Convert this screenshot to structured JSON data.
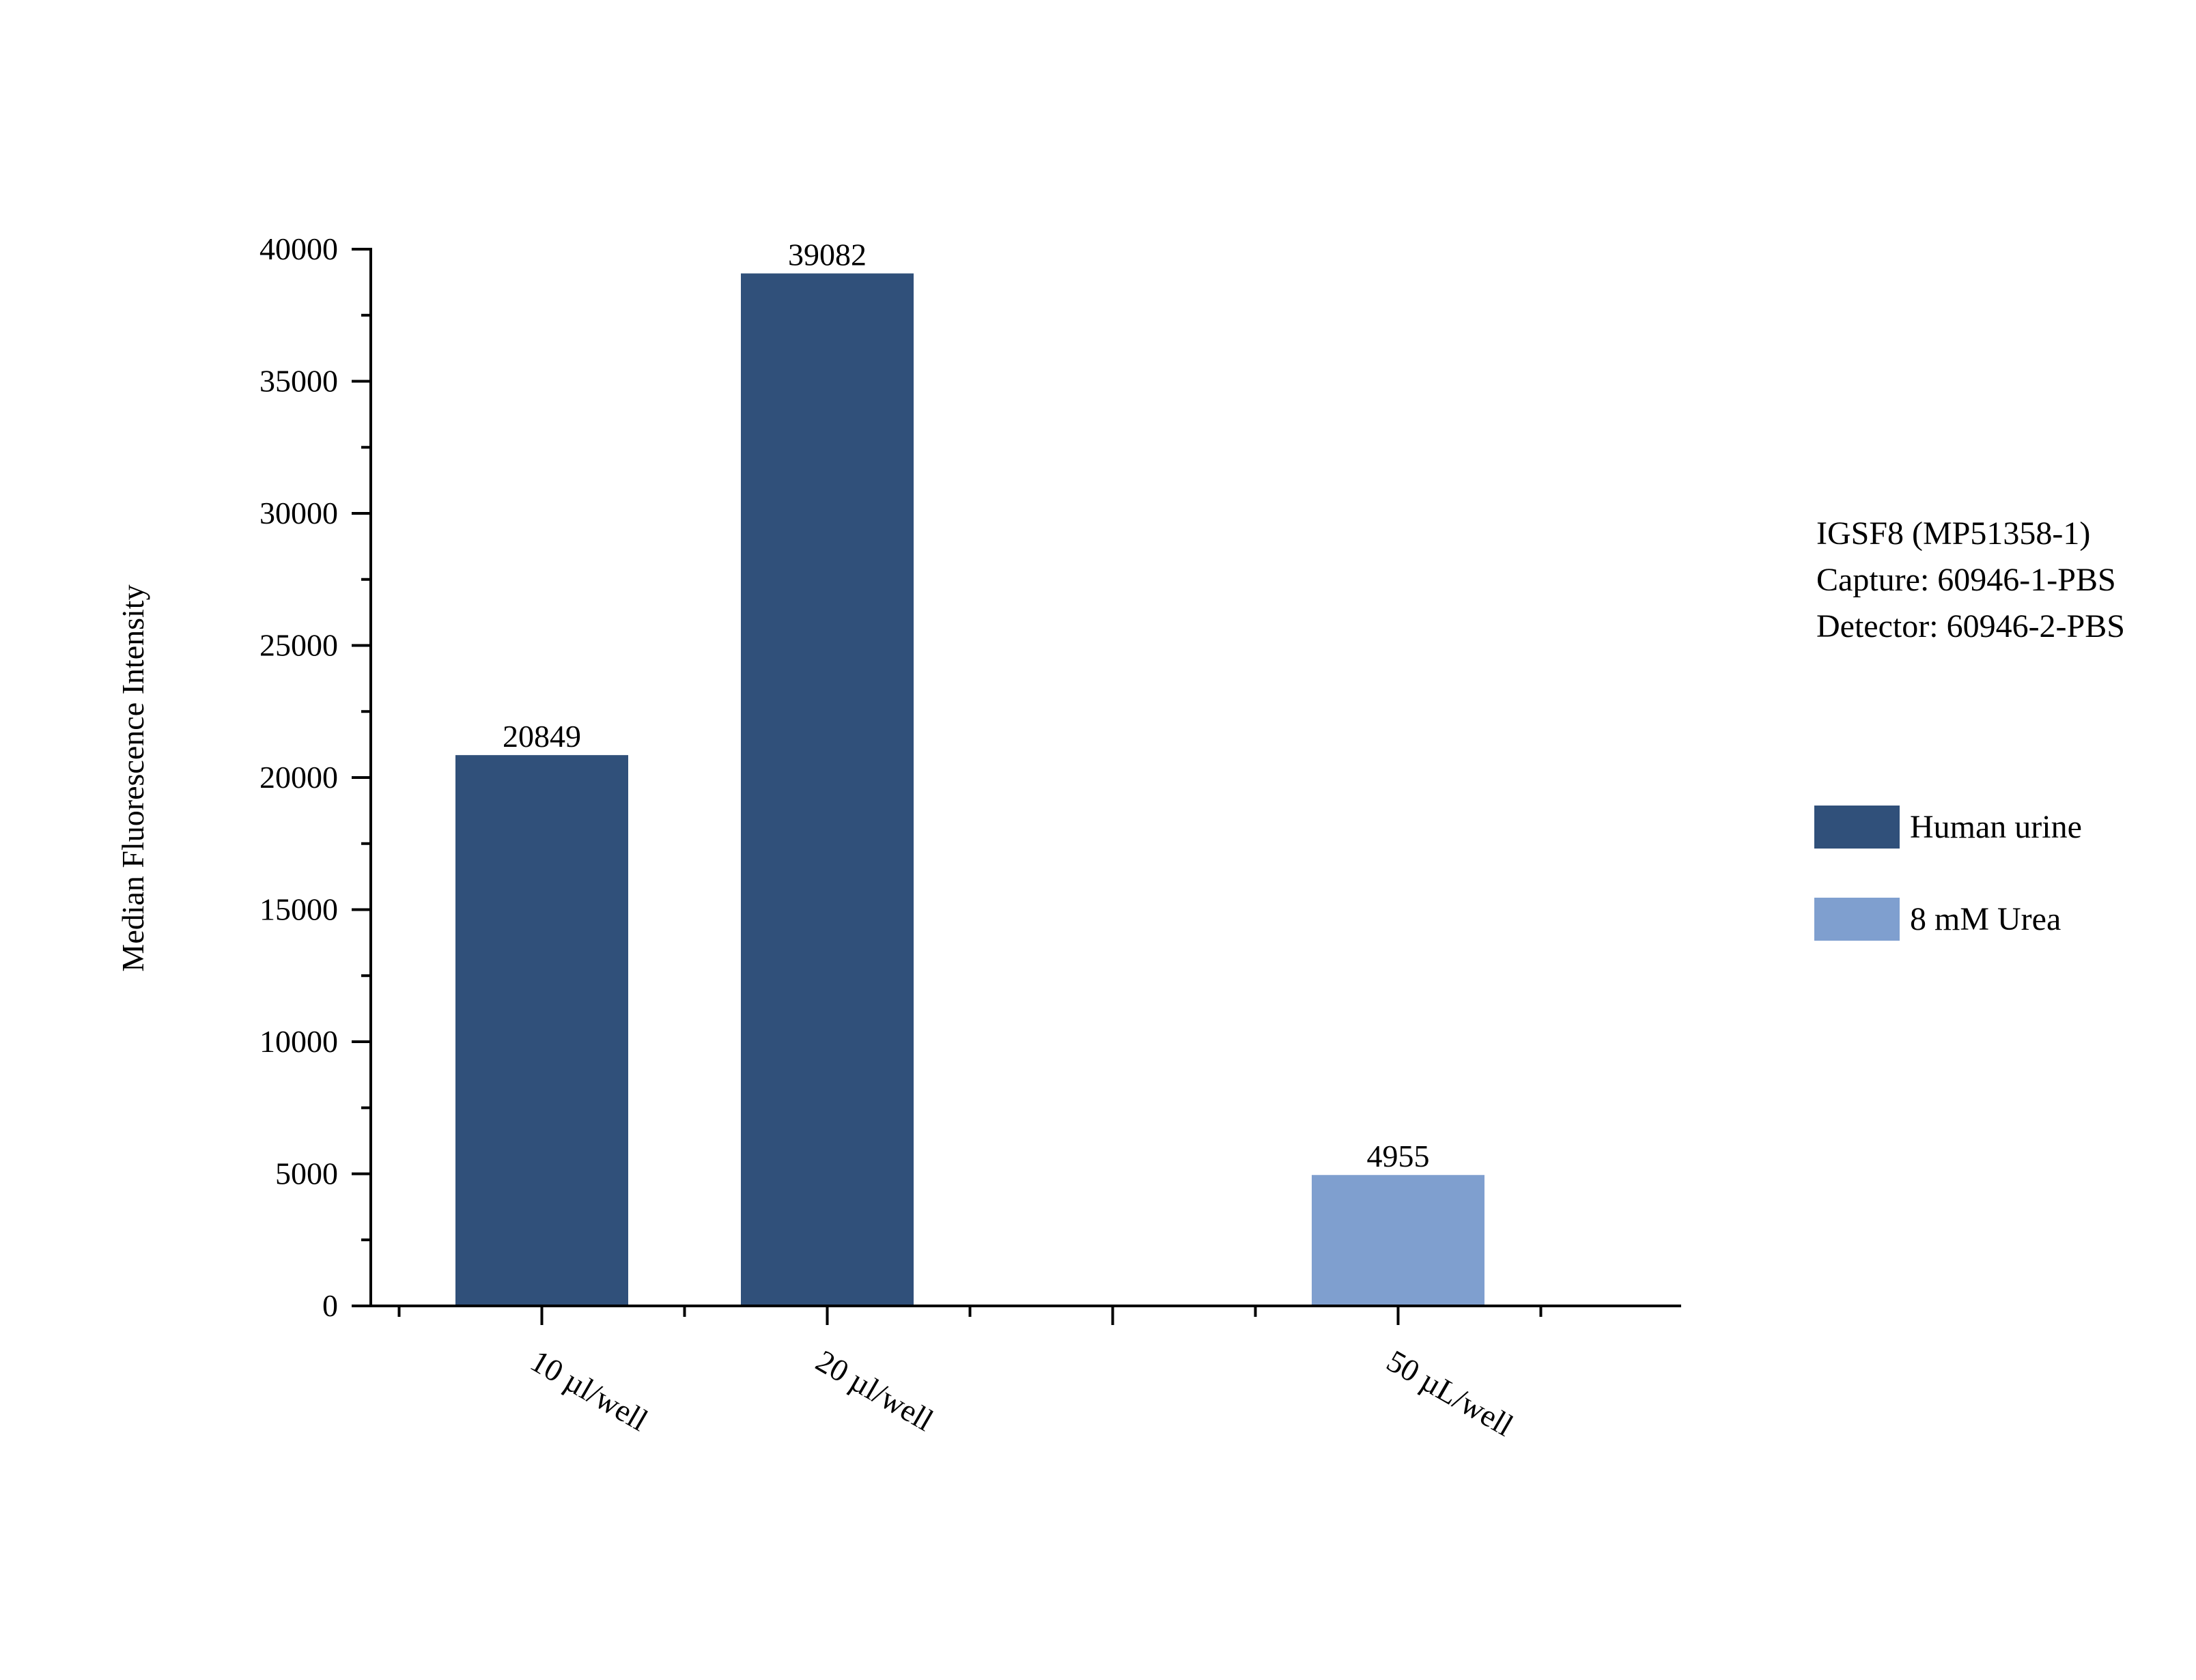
{
  "chart_data": {
    "type": "bar",
    "title": "",
    "xlabel": "",
    "ylabel": "Median Fluorescence Intensity",
    "ylim": [
      0,
      40000
    ],
    "yticks": [
      0,
      5000,
      10000,
      15000,
      20000,
      25000,
      30000,
      35000,
      40000
    ],
    "ytick_labels": [
      "0",
      "5000",
      "10000",
      "15000",
      "20000",
      "25000",
      "30000",
      "35000",
      "40000"
    ],
    "y_minor_step": 2500,
    "categories": [
      "10 µl/well",
      "20 µl/well",
      "",
      "50 µL/well"
    ],
    "series": [
      {
        "name": "Human urine",
        "color": "#30507A",
        "values": [
          20849,
          39082,
          null,
          null
        ]
      },
      {
        "name": "8 mM Urea",
        "color": "#7F9FCF",
        "values": [
          null,
          null,
          null,
          4955
        ]
      }
    ],
    "data_labels": [
      "20849",
      "39082",
      "",
      "4955"
    ],
    "grid": false,
    "legend": "right",
    "annotations": [
      "IGSF8 (MP51358-1)",
      "Capture: 60946-1-PBS",
      "Detector: 60946-2-PBS"
    ]
  }
}
